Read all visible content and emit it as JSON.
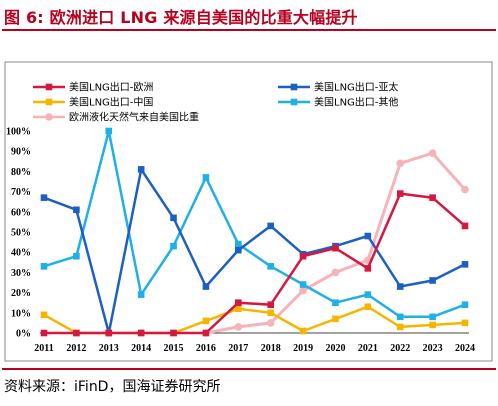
{
  "figure": {
    "title": "图 6:  欧洲进口 LNG 来源自美国的比重大幅提升",
    "source": "资料来源：iFinD，国海证券研究所"
  },
  "chart_data": {
    "type": "line",
    "x": [
      "2011",
      "2012",
      "2013",
      "2014",
      "2015",
      "2016",
      "2017",
      "2018",
      "2019",
      "2020",
      "2021",
      "2022",
      "2023",
      "2024"
    ],
    "ylim": [
      0,
      100
    ],
    "yticks": [
      "0%",
      "10%",
      "20%",
      "30%",
      "40%",
      "50%",
      "60%",
      "70%",
      "80%",
      "90%",
      "100%"
    ],
    "grid": false,
    "legend_position": "top",
    "series": [
      {
        "name": "美国LNG出口-欧洲",
        "color": "#d6173f",
        "marker": "square",
        "values": [
          0,
          0,
          0,
          0,
          0,
          0,
          15,
          14,
          38,
          42,
          32,
          69,
          67,
          53
        ]
      },
      {
        "name": "美国LNG出口-亚太",
        "color": "#1e5fc4",
        "marker": "square",
        "values": [
          67,
          61,
          0,
          81,
          57,
          23,
          41,
          53,
          39,
          43,
          48,
          23,
          26,
          34
        ]
      },
      {
        "name": "美国LNG出口-中国",
        "color": "#f7b500",
        "marker": "square",
        "values": [
          9,
          0,
          0,
          0,
          0,
          6,
          12,
          10,
          1,
          7,
          13,
          3,
          4,
          5
        ]
      },
      {
        "name": "美国LNG出口-其他",
        "color": "#1fb0e6",
        "marker": "square",
        "values": [
          33,
          38,
          100,
          19,
          43,
          77,
          44,
          33,
          24,
          15,
          19,
          8,
          8,
          14
        ]
      },
      {
        "name": "欧洲液化天然气来自美国比重",
        "color": "#f7b3b8",
        "marker": "circle",
        "values": [
          null,
          null,
          null,
          null,
          null,
          0,
          3,
          5,
          21,
          30,
          36,
          84,
          89,
          71
        ]
      }
    ]
  }
}
